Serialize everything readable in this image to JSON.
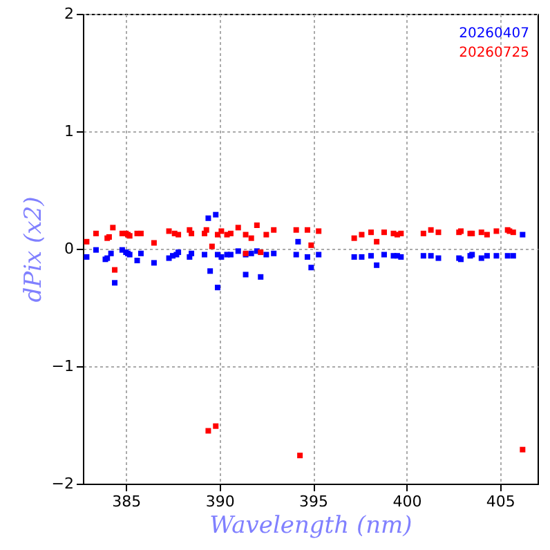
{
  "chart_data": {
    "type": "scatter",
    "xlabel": "Wavelength (nm)",
    "ylabel": "dPix (x2)",
    "xlim": [
      382.7,
      407
    ],
    "xticks": [
      385,
      390,
      395,
      400,
      405
    ],
    "ylim": [
      -2,
      2
    ],
    "yticks": [
      -2,
      -1,
      0,
      1,
      2
    ],
    "grid": true,
    "legend": "top right",
    "marker": "square",
    "series": [
      {
        "name": "20260407",
        "color": "#0000ff",
        "x": [
          382.9,
          383.4,
          383.9,
          384.0,
          384.2,
          384.4,
          384.8,
          385.0,
          385.1,
          385.2,
          385.6,
          385.8,
          386.5,
          387.3,
          387.5,
          387.7,
          387.8,
          388.4,
          388.5,
          389.2,
          389.4,
          389.8,
          389.5,
          389.9,
          389.9,
          390.1,
          390.4,
          390.6,
          391.0,
          391.4,
          391.4,
          391.7,
          392.0,
          392.2,
          392.5,
          392.9,
          394.1,
          394.2,
          394.7,
          394.9,
          395.3,
          397.2,
          397.6,
          398.1,
          398.4,
          398.8,
          399.3,
          399.5,
          399.7,
          400.9,
          401.3,
          401.7,
          402.8,
          402.9,
          403.4,
          403.5,
          404.0,
          404.3,
          404.8,
          405.4,
          405.7,
          406.2
        ],
        "values": [
          -0.07,
          -0.01,
          -0.09,
          -0.08,
          -0.04,
          -0.29,
          -0.01,
          -0.03,
          -0.04,
          -0.05,
          -0.1,
          -0.04,
          -0.12,
          -0.08,
          -0.06,
          -0.05,
          -0.03,
          -0.07,
          -0.04,
          -0.05,
          0.26,
          0.29,
          -0.19,
          -0.33,
          -0.05,
          -0.07,
          -0.05,
          -0.05,
          -0.02,
          -0.05,
          -0.22,
          -0.04,
          -0.02,
          -0.24,
          -0.05,
          -0.04,
          -0.05,
          0.06,
          -0.07,
          -0.16,
          -0.05,
          -0.07,
          -0.07,
          -0.06,
          -0.14,
          -0.05,
          -0.06,
          -0.06,
          -0.07,
          -0.06,
          -0.06,
          -0.08,
          -0.08,
          -0.09,
          -0.06,
          -0.05,
          -0.08,
          -0.06,
          -0.06,
          -0.06,
          -0.06,
          0.12
        ]
      },
      {
        "name": "20260725",
        "color": "#ff0000",
        "x": [
          382.9,
          383.4,
          384.0,
          384.1,
          384.3,
          384.4,
          384.8,
          385.0,
          385.1,
          385.2,
          385.6,
          385.8,
          386.5,
          387.3,
          387.6,
          387.8,
          388.4,
          388.5,
          389.2,
          389.3,
          389.6,
          389.9,
          390.1,
          390.4,
          390.6,
          391.0,
          391.4,
          391.4,
          391.7,
          392.0,
          392.2,
          392.5,
          392.9,
          394.1,
          394.7,
          394.9,
          395.3,
          397.2,
          397.6,
          398.1,
          398.4,
          398.8,
          399.3,
          399.5,
          399.7,
          400.9,
          401.3,
          401.7,
          402.8,
          402.9,
          403.4,
          403.5,
          404.0,
          404.3,
          404.8,
          405.4,
          405.5,
          405.7,
          389.4,
          389.8,
          394.3,
          406.2
        ],
        "values": [
          0.06,
          0.13,
          0.09,
          0.1,
          0.18,
          -0.18,
          0.13,
          0.13,
          0.12,
          0.11,
          0.13,
          0.13,
          0.05,
          0.15,
          0.13,
          0.12,
          0.16,
          0.13,
          0.13,
          0.16,
          0.02,
          0.12,
          0.15,
          0.12,
          0.13,
          0.18,
          0.12,
          -0.04,
          0.09,
          0.2,
          -0.03,
          0.12,
          0.16,
          0.16,
          0.16,
          0.03,
          0.15,
          0.09,
          0.12,
          0.14,
          0.06,
          0.14,
          0.13,
          0.12,
          0.13,
          0.13,
          0.16,
          0.14,
          0.14,
          0.15,
          0.13,
          0.13,
          0.14,
          0.12,
          0.15,
          0.16,
          0.15,
          0.14,
          -1.55,
          -1.51,
          -1.76,
          -1.71
        ]
      }
    ]
  }
}
